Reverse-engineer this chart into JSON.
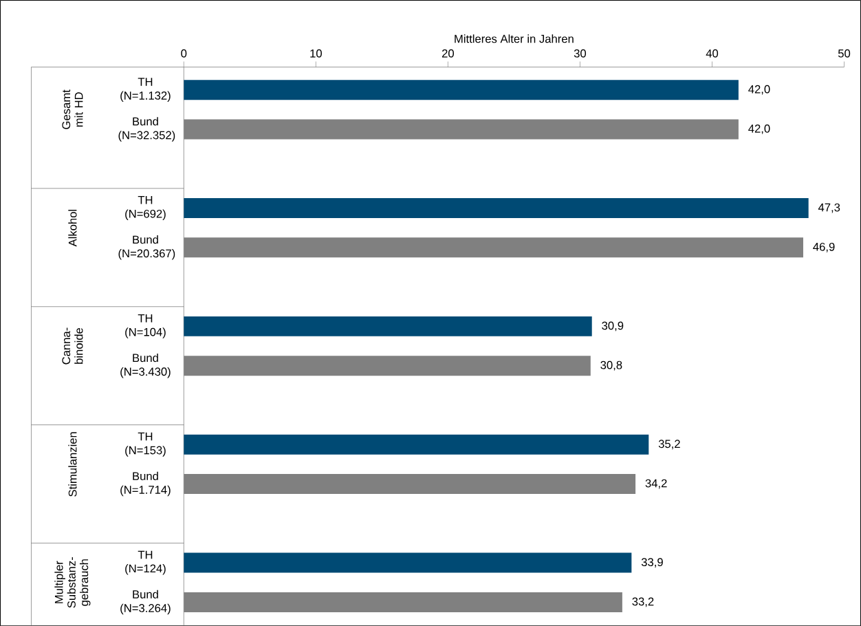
{
  "chart_data": {
    "type": "bar",
    "orientation": "horizontal",
    "xlabel": "Mittleres Alter in Jahren",
    "categories": [
      "TH (N=1.132)",
      "Bund (N=32.352)",
      null,
      "TH (N=692)",
      "Bund (N=20.367)",
      null,
      "TH (N=104)",
      "Bund (N=3.430)",
      null,
      "TH (N=153)",
      "Bund (N=1.714)",
      null,
      "TH (N=124)",
      "Bund (N=3.264)"
    ],
    "values": [
      42.0,
      42.0,
      null,
      47.3,
      46.9,
      null,
      30.9,
      30.8,
      null,
      35.2,
      34.2,
      null,
      33.9,
      33.2
    ],
    "value_labels": [
      "42,0",
      "42,0",
      null,
      "47,3",
      "46,9",
      null,
      "30,9",
      "30,8",
      null,
      "35,2",
      "34,2",
      null,
      "33,9",
      "33,2"
    ],
    "colors": [
      "#004a74",
      "#808080",
      null,
      "#004a74",
      "#808080",
      null,
      "#004a74",
      "#808080",
      null,
      "#004a74",
      "#808080",
      null,
      "#004a74",
      "#808080"
    ],
    "annotations": [
      "Gesamt mit HD",
      "Alkohol",
      "Canna-binoide",
      "Stimulanzien",
      "Multipler Substanz-gebrauch"
    ],
    "xlim": [
      0,
      50
    ],
    "xticks": [
      0,
      10,
      20,
      30,
      40,
      50
    ]
  }
}
